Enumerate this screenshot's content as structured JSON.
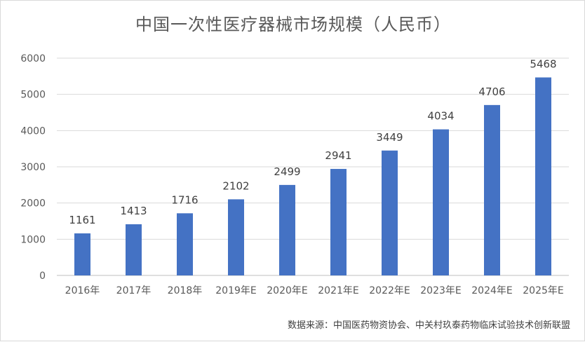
{
  "chart_data": {
    "type": "bar",
    "title": "中国一次性医疗器械市场规模（人民币）",
    "categories": [
      "2016年",
      "2017年",
      "2018年",
      "2019年E",
      "2020年E",
      "2021年E",
      "2022年E",
      "2023年E",
      "2024年E",
      "2025年E"
    ],
    "values": [
      1161,
      1413,
      1716,
      2102,
      2499,
      2941,
      3449,
      4034,
      4706,
      5468
    ],
    "ylim": [
      0,
      6000
    ],
    "yticks": [
      0,
      1000,
      2000,
      3000,
      4000,
      5000,
      6000
    ],
    "xlabel": "",
    "ylabel": "",
    "grid": true,
    "bar_color": "#4472C4"
  },
  "source_note": "数据来源：中国医药物资协会、中关村玖泰药物临床试验技术创新联盟"
}
